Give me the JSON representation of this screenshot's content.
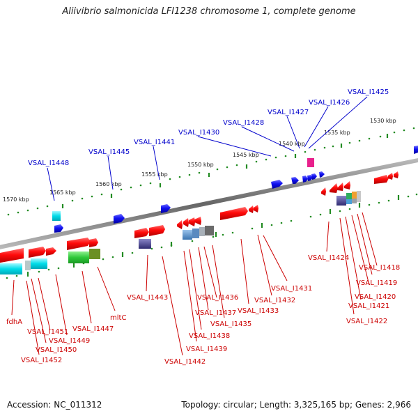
{
  "title": "Aliivibrio salmonicida LFI1238 chromosome 1, complete genome",
  "footer": {
    "accession": "Accession: NC_011312",
    "summary": "Topology: circular; Length: 3,325,165 bp; Genes: 2,966"
  },
  "colors": {
    "backbone": "#888888",
    "forward_scale": "#228B22",
    "label_forward": "#0000CC",
    "label_reverse": "#CC0000",
    "gene_red": "#FF1010",
    "gene_blue": "#1010EE",
    "feature_cyan": "#00E0E8",
    "feature_pink": "#E8208C",
    "feature_green": "#39C94A"
  },
  "scale": {
    "outer": [
      "1530 kbp",
      "1535 kbp",
      "1540 kbp",
      "1545 kbp",
      "1550 kbp",
      "1555 kbp",
      "1560 kbp",
      "1565 kbp",
      "1570 kbp"
    ]
  },
  "labels": {
    "forward": [
      "VSAL_I1425",
      "VSAL_I1426",
      "VSAL_I1427",
      "VSAL_I1428",
      "VSAL_I1430",
      "VSAL_I1441",
      "VSAL_I1445",
      "VSAL_I1448"
    ],
    "reverse": [
      "fdhA",
      "VSAL_I1452",
      "VSAL_I1450",
      "VSAL_I1451",
      "VSAL_I1449",
      "VSAL_I1447",
      "mltC",
      "VSAL_I1443",
      "VSAL_I1442",
      "VSAL_I1439",
      "VSAL_I1438",
      "VSAL_I1437",
      "VSAL_I1436",
      "VSAL_I1435",
      "VSAL_I1433",
      "VSAL_I1432",
      "VSAL_I1431",
      "VSAL_I1424",
      "VSAL_I1418",
      "VSAL_I1419",
      "VSAL_I1420",
      "VSAL_I1421",
      "VSAL_I1422"
    ]
  }
}
